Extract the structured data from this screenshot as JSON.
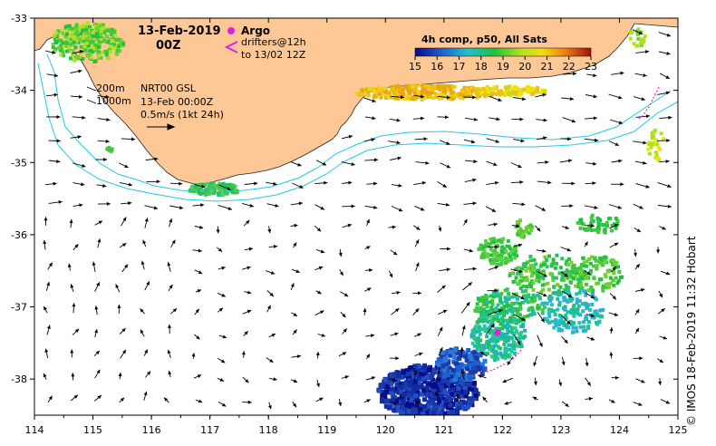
{
  "title": {
    "date": "13-Feb-2019",
    "time": "00Z"
  },
  "legend_argo": {
    "label": "Argo",
    "drifters_line1": "drifters@12h",
    "drifters_line2": "to 13/02 12Z",
    "argo_color": "#e020e0"
  },
  "isobaths": {
    "shallow": "200m",
    "deep": "1000m",
    "color": "#22c8e8"
  },
  "current_info": {
    "line1": "NRT00 GSL",
    "line2": "13-Feb 00:00Z",
    "line3": "0.5m/s (1kt 24h)"
  },
  "colorbar": {
    "title": "4h comp, p50, All Sats",
    "ticks": [
      "15",
      "16",
      "17",
      "18",
      "19",
      "20",
      "21",
      "22",
      "23"
    ],
    "range": [
      15,
      23
    ]
  },
  "credit": "© IMOS 18-Feb-2019 11:32 Hobart",
  "axes": {
    "x_ticks": [
      "114",
      "115",
      "116",
      "117",
      "118",
      "119",
      "120",
      "121",
      "122",
      "123",
      "124",
      "125"
    ],
    "y_ticks": [
      "-33",
      "-34",
      "-35",
      "-36",
      "-37",
      "-38"
    ],
    "xlim": [
      114,
      125
    ],
    "ylim": [
      -38.5,
      -33
    ]
  },
  "land_color": "#fdc896"
}
